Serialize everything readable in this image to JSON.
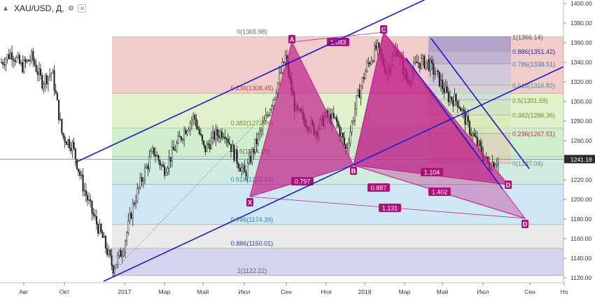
{
  "header": {
    "symbol": "XAU/USD, Д,",
    "collapse_icon": "chevron-up-icon",
    "settings_icon": "gear-icon",
    "close_icon": "close-icon"
  },
  "price_axis": {
    "min": 1120,
    "max": 1400,
    "ticks": [
      1400,
      1380,
      1360,
      1340,
      1320,
      1300,
      1280,
      1260,
      1240,
      1220,
      1200,
      1180,
      1160,
      1140,
      1120
    ],
    "tick_labels": [
      "1400.00",
      "1380.00",
      "1360.00",
      "1340.00",
      "1320.00",
      "1300.00",
      "1280.00",
      "1260.00",
      "1240.00",
      "1220.00",
      "1200.00",
      "1180.00",
      "1160.00",
      "1140.00",
      "1120.00"
    ],
    "current_price": "1241.18",
    "current_value": 1241.18
  },
  "time_axis": {
    "labels": [
      "Авг",
      "Окт",
      "2017",
      "Мар",
      "Май",
      "Июл",
      "Сен",
      "Ноя",
      "2018",
      "Мар",
      "Май",
      "Июл",
      "Сен",
      "Но"
    ]
  },
  "fib_levels": [
    {
      "label": "0(1365.98)",
      "value": 1365.98,
      "color": "#e8a0a0"
    },
    {
      "label": "0.236(1308.45)",
      "value": 1308.45,
      "color": "#c8e6a0"
    },
    {
      "label": "0.382(1272.86)",
      "value": 1272.86,
      "color": "#a8e0a0"
    },
    {
      "label": "0.5(1244.10)",
      "value": 1244.1,
      "color": "#a8dcc8"
    },
    {
      "label": "0.618(1215.34)",
      "value": 1215.34,
      "color": "#a8d4ec"
    },
    {
      "label": "0.786(1174.39)",
      "value": 1174.39,
      "color": "#d8d8d8"
    },
    {
      "label": "0.886(1150.01)",
      "value": 1150.01,
      "color": "#b0b0e0"
    },
    {
      "label": "1(1122.22)",
      "value": 1122.22,
      "color": null
    }
  ],
  "fib_levels_right": [
    {
      "label": "1(1366.14)",
      "value": 1366.14,
      "color": "#8888c8"
    },
    {
      "label": "0.886(1351.42)",
      "value": 1351.42,
      "color": "#a0a0d0"
    },
    {
      "label": "0.786(1338.51)",
      "value": 1338.51,
      "color": "#b8c8e0"
    },
    {
      "label": "0.618(1316.82)",
      "value": 1316.82,
      "color": "#c0d8d8"
    },
    {
      "label": "0.5(1301.59)",
      "value": 1301.59,
      "color": "#c8e0c0"
    },
    {
      "label": "0.382(1286.36)",
      "value": 1286.36,
      "color": "#d8e4b0"
    },
    {
      "label": "0.236(1267.51)",
      "value": 1267.51,
      "color": "#e0c8b0"
    },
    {
      "label": "0(1237.04)",
      "value": 1237.04,
      "color": null
    }
  ],
  "pattern": {
    "points": [
      "X",
      "A",
      "B",
      "C",
      "D",
      "D"
    ],
    "ratios": [
      "1.083",
      "0.797",
      "0.887",
      "1.104",
      "1.402",
      "1.131"
    ]
  },
  "chart_data": {
    "type": "candlestick",
    "title": "XAU/USD, Д,",
    "ylim": [
      1120,
      1400
    ],
    "x_ticks": [
      "Авг",
      "Окт",
      "2017",
      "Мар",
      "Май",
      "Июл",
      "Сен",
      "Ноя",
      "2018",
      "Мар",
      "Май",
      "Июл",
      "Сен",
      "Но"
    ],
    "close_path": [
      [
        "2016-07",
        1340
      ],
      [
        "2016-07",
        1350
      ],
      [
        "2016-08",
        1335
      ],
      [
        "2016-08",
        1345
      ],
      [
        "2016-09",
        1320
      ],
      [
        "2016-09",
        1330
      ],
      [
        "2016-10",
        1265
      ],
      [
        "2016-10",
        1255
      ],
      [
        "2016-11",
        1215
      ],
      [
        "2016-11",
        1185
      ],
      [
        "2016-12",
        1160
      ],
      [
        "2016-12",
        1130
      ],
      [
        "2017-01",
        1150
      ],
      [
        "2017-01",
        1195
      ],
      [
        "2017-02",
        1225
      ],
      [
        "2017-02",
        1250
      ],
      [
        "2017-03",
        1230
      ],
      [
        "2017-03",
        1250
      ],
      [
        "2017-04",
        1270
      ],
      [
        "2017-04",
        1285
      ],
      [
        "2017-05",
        1250
      ],
      [
        "2017-05",
        1265
      ],
      [
        "2017-06",
        1270
      ],
      [
        "2017-06",
        1245
      ],
      [
        "2017-07",
        1225
      ],
      [
        "2017-07",
        1255
      ],
      [
        "2017-08",
        1280
      ],
      [
        "2017-08",
        1310
      ],
      [
        "2017-09",
        1345
      ],
      [
        "2017-09",
        1290
      ],
      [
        "2017-10",
        1280
      ],
      [
        "2017-10",
        1270
      ],
      [
        "2017-11",
        1285
      ],
      [
        "2017-11",
        1280
      ],
      [
        "2017-12",
        1250
      ],
      [
        "2017-12",
        1300
      ],
      [
        "2018-01",
        1335
      ],
      [
        "2018-01",
        1355
      ],
      [
        "2018-02",
        1330
      ],
      [
        "2018-02",
        1355
      ],
      [
        "2018-03",
        1320
      ],
      [
        "2018-03",
        1340
      ],
      [
        "2018-04",
        1340
      ],
      [
        "2018-04",
        1325
      ],
      [
        "2018-05",
        1305
      ],
      [
        "2018-05",
        1300
      ],
      [
        "2018-06",
        1275
      ],
      [
        "2018-06",
        1255
      ],
      [
        "2018-07",
        1235
      ],
      [
        "2018-07",
        1241
      ]
    ]
  }
}
